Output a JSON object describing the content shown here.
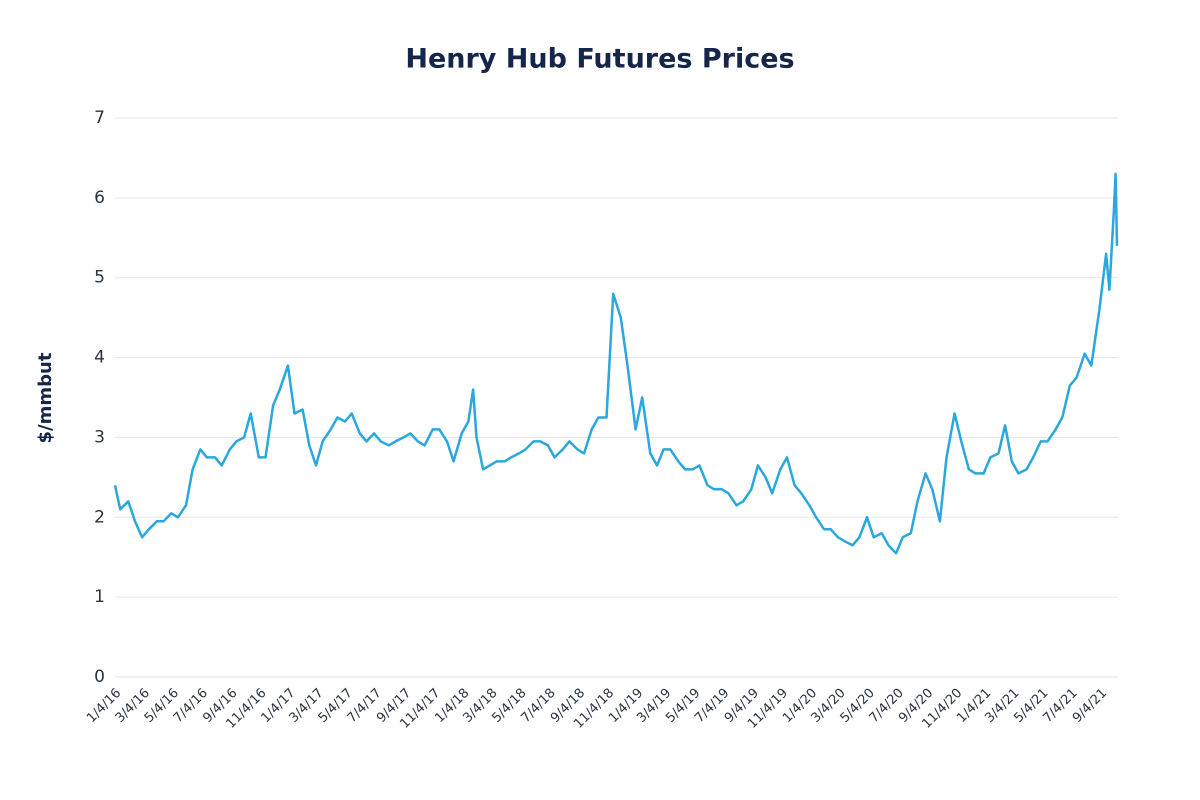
{
  "chart_data": {
    "type": "line",
    "title": "Henry Hub Futures Prices",
    "y_label": "$/mmbut",
    "xlim": [
      "1/4/16",
      "10/10/21"
    ],
    "xticks": [
      "1/4/16",
      "3/4/16",
      "5/4/16",
      "7/4/16",
      "9/4/16",
      "11/4/16",
      "1/4/17",
      "3/4/17",
      "5/4/17",
      "7/4/17",
      "9/4/17",
      "11/4/17",
      "1/4/18",
      "3/4/18",
      "5/4/18",
      "7/4/18",
      "9/4/18",
      "11/4/18",
      "1/4/19",
      "3/4/19",
      "5/4/19",
      "7/4/19",
      "9/4/19",
      "11/4/19",
      "1/4/20",
      "3/4/20",
      "5/4/20",
      "7/4/20",
      "9/4/20",
      "11/4/20",
      "1/4/21",
      "3/4/21",
      "5/4/21",
      "7/4/21",
      "9/4/21"
    ],
    "ylim": [
      0,
      7
    ],
    "yticks": [
      0,
      1,
      2,
      3,
      4,
      5,
      6,
      7
    ],
    "grid": true,
    "series": [
      {
        "color": "#2aa7dd",
        "x": [
          "1/4/16",
          "1/15/16",
          "2/1/16",
          "2/15/16",
          "3/1/16",
          "3/15/16",
          "4/1/16",
          "4/15/16",
          "5/1/16",
          "5/15/16",
          "6/1/16",
          "6/15/16",
          "7/1/16",
          "7/15/16",
          "8/1/16",
          "8/15/16",
          "9/1/16",
          "9/15/16",
          "10/1/16",
          "10/15/16",
          "11/1/16",
          "11/15/16",
          "12/1/16",
          "12/15/16",
          "1/1/17",
          "1/15/17",
          "2/1/17",
          "2/15/17",
          "3/1/17",
          "3/15/17",
          "4/1/17",
          "4/15/17",
          "5/1/17",
          "5/15/17",
          "6/1/17",
          "6/15/17",
          "7/1/17",
          "7/15/17",
          "8/1/17",
          "8/15/17",
          "9/1/17",
          "9/15/17",
          "10/1/17",
          "10/15/17",
          "11/1/17",
          "11/15/17",
          "12/1/17",
          "12/15/17",
          "1/1/18",
          "1/15/18",
          "1/25/18",
          "2/1/18",
          "2/15/18",
          "3/1/18",
          "3/15/18",
          "4/1/18",
          "4/15/18",
          "5/1/18",
          "5/15/18",
          "6/1/18",
          "6/15/18",
          "7/1/18",
          "7/15/18",
          "8/1/18",
          "8/15/18",
          "9/1/18",
          "9/15/18",
          "10/1/18",
          "10/15/18",
          "11/1/18",
          "11/15/18",
          "12/1/18",
          "12/15/18",
          "1/1/19",
          "1/15/19",
          "2/1/19",
          "2/15/19",
          "3/1/19",
          "3/15/19",
          "4/1/19",
          "4/15/19",
          "5/1/19",
          "5/15/19",
          "6/1/19",
          "6/15/19",
          "7/1/19",
          "7/15/19",
          "8/1/19",
          "8/15/19",
          "9/1/19",
          "9/15/19",
          "10/1/19",
          "10/15/19",
          "11/1/19",
          "11/15/19",
          "12/1/19",
          "12/15/19",
          "1/1/20",
          "1/15/20",
          "2/1/20",
          "2/15/20",
          "3/1/20",
          "3/15/20",
          "4/1/20",
          "4/15/20",
          "5/1/20",
          "5/15/20",
          "6/1/20",
          "6/15/20",
          "7/1/20",
          "7/15/20",
          "8/1/20",
          "8/15/20",
          "9/1/20",
          "9/15/20",
          "10/1/20",
          "10/15/20",
          "11/1/20",
          "11/15/20",
          "12/1/20",
          "12/15/20",
          "1/1/21",
          "1/15/21",
          "2/1/21",
          "2/15/21",
          "3/1/21",
          "3/15/21",
          "4/1/21",
          "4/15/21",
          "5/1/21",
          "5/15/21",
          "6/1/21",
          "6/15/21",
          "7/1/21",
          "7/15/21",
          "8/1/21",
          "8/15/21",
          "9/1/21",
          "9/15/21",
          "9/22/21",
          "10/1/21",
          "10/5/21",
          "10/8/21"
        ],
        "values": [
          2.4,
          2.1,
          2.2,
          1.95,
          1.75,
          1.85,
          1.95,
          1.95,
          2.05,
          2.0,
          2.15,
          2.6,
          2.85,
          2.75,
          2.75,
          2.65,
          2.85,
          2.95,
          3.0,
          3.3,
          2.75,
          2.75,
          3.4,
          3.6,
          3.9,
          3.3,
          3.35,
          2.9,
          2.65,
          2.95,
          3.1,
          3.25,
          3.2,
          3.3,
          3.05,
          2.95,
          3.05,
          2.95,
          2.9,
          2.95,
          3.0,
          3.05,
          2.95,
          2.9,
          3.1,
          3.1,
          2.95,
          2.7,
          3.05,
          3.2,
          3.6,
          3.0,
          2.6,
          2.65,
          2.7,
          2.7,
          2.75,
          2.8,
          2.85,
          2.95,
          2.95,
          2.9,
          2.75,
          2.85,
          2.95,
          2.85,
          2.8,
          3.1,
          3.25,
          3.25,
          4.8,
          4.5,
          3.9,
          3.1,
          3.5,
          2.8,
          2.65,
          2.85,
          2.85,
          2.7,
          2.6,
          2.6,
          2.65,
          2.4,
          2.35,
          2.35,
          2.3,
          2.15,
          2.2,
          2.35,
          2.65,
          2.5,
          2.3,
          2.6,
          2.75,
          2.4,
          2.3,
          2.15,
          2.0,
          1.85,
          1.85,
          1.75,
          1.7,
          1.65,
          1.75,
          2.0,
          1.75,
          1.8,
          1.65,
          1.55,
          1.75,
          1.8,
          2.2,
          2.55,
          2.35,
          1.95,
          2.75,
          3.3,
          2.95,
          2.6,
          2.55,
          2.55,
          2.75,
          2.8,
          3.15,
          2.7,
          2.55,
          2.6,
          2.75,
          2.95,
          2.95,
          3.1,
          3.25,
          3.65,
          3.75,
          4.05,
          3.9,
          4.6,
          5.3,
          4.85,
          5.8,
          6.3,
          5.4
        ]
      }
    ]
  }
}
